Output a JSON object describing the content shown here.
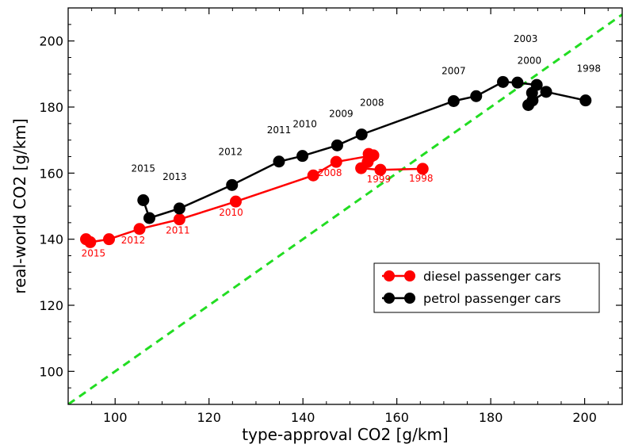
{
  "chart_data": {
    "type": "scatter",
    "xlabel": "type-approval CO2 [g/km]",
    "ylabel": "real-world CO2 [g/km]",
    "xlim": [
      90,
      208
    ],
    "ylim": [
      90,
      210
    ],
    "x_ticks": [
      100,
      120,
      140,
      160,
      180,
      200
    ],
    "y_ticks": [
      100,
      120,
      140,
      160,
      180,
      200
    ],
    "grid": false,
    "legend_position": "bottom-right",
    "reference_line": {
      "style": "dashed",
      "color": "#22dd22",
      "x": [
        90,
        208
      ],
      "y": [
        90,
        208
      ]
    },
    "series": [
      {
        "name": "diesel passenger cars",
        "color": "#ff0000",
        "points": [
          {
            "x": 165.5,
            "y": 161.3
          },
          {
            "x": 156.5,
            "y": 161.0
          },
          {
            "x": 152.4,
            "y": 161.5
          },
          {
            "x": 153.8,
            "y": 163.4
          },
          {
            "x": 154.5,
            "y": 165.0
          },
          {
            "x": 154.0,
            "y": 165.8
          },
          {
            "x": 155.0,
            "y": 165.4
          },
          {
            "x": 147.1,
            "y": 163.4
          },
          {
            "x": 142.2,
            "y": 159.3
          },
          {
            "x": 125.7,
            "y": 151.4
          },
          {
            "x": 113.7,
            "y": 146.0
          },
          {
            "x": 105.2,
            "y": 143.1
          },
          {
            "x": 98.7,
            "y": 140.0
          },
          {
            "x": 94.7,
            "y": 139.1
          },
          {
            "x": 93.8,
            "y": 140.0
          }
        ],
        "labels": [
          {
            "text": "1998",
            "x": 165.5,
            "y": 161.3,
            "dx": -2,
            "dy": 16
          },
          {
            "text": "1999",
            "x": 156.5,
            "y": 161.0,
            "dx": -2,
            "dy": 16
          },
          {
            "text": "2008",
            "x": 147.1,
            "y": 163.4,
            "dx": -8,
            "dy": 18
          },
          {
            "text": "2010",
            "x": 125.7,
            "y": 151.4,
            "dx": -6,
            "dy": 18
          },
          {
            "text": "2011",
            "x": 113.7,
            "y": 146.0,
            "dx": -2,
            "dy": 18
          },
          {
            "text": "2012",
            "x": 105.2,
            "y": 143.1,
            "dx": -8,
            "dy": 18
          },
          {
            "text": "2015",
            "x": 94.7,
            "y": 139.1,
            "dx": 4,
            "dy": 18
          }
        ]
      },
      {
        "name": "petrol passenger cars",
        "color": "#000000",
        "points": [
          {
            "x": 200.2,
            "y": 182.0
          },
          {
            "x": 191.8,
            "y": 184.6
          },
          {
            "x": 188.9,
            "y": 182.0
          },
          {
            "x": 188.0,
            "y": 180.6
          },
          {
            "x": 188.8,
            "y": 184.3
          },
          {
            "x": 189.8,
            "y": 186.7
          },
          {
            "x": 185.7,
            "y": 187.4
          },
          {
            "x": 182.6,
            "y": 187.6
          },
          {
            "x": 176.9,
            "y": 183.3
          },
          {
            "x": 172.1,
            "y": 181.8
          },
          {
            "x": 152.5,
            "y": 171.7
          },
          {
            "x": 147.3,
            "y": 168.4
          },
          {
            "x": 139.9,
            "y": 165.2
          },
          {
            "x": 134.9,
            "y": 163.5
          },
          {
            "x": 124.9,
            "y": 156.4
          },
          {
            "x": 113.7,
            "y": 149.3
          },
          {
            "x": 107.3,
            "y": 146.4
          },
          {
            "x": 106.0,
            "y": 151.8
          }
        ],
        "labels": [
          {
            "text": "1998",
            "x": 200.2,
            "y": 182.0,
            "dx": 4,
            "dy": -36
          },
          {
            "text": "2000",
            "x": 188.9,
            "y": 182.0,
            "dx": -4,
            "dy": -46
          },
          {
            "text": "2003",
            "x": 189.8,
            "y": 186.7,
            "dx": -14,
            "dy": -54
          },
          {
            "text": "2007",
            "x": 172.1,
            "y": 181.8,
            "dx": 0,
            "dy": -34
          },
          {
            "text": "2008",
            "x": 152.5,
            "y": 171.7,
            "dx": 13,
            "dy": -36
          },
          {
            "text": "2009",
            "x": 147.3,
            "y": 168.4,
            "dx": 5,
            "dy": -36
          },
          {
            "text": "2010",
            "x": 139.9,
            "y": 165.2,
            "dx": 3,
            "dy": -36
          },
          {
            "text": "2011",
            "x": 134.9,
            "y": 163.5,
            "dx": 0,
            "dy": -36
          },
          {
            "text": "2012",
            "x": 124.9,
            "y": 156.4,
            "dx": -2,
            "dy": -38
          },
          {
            "text": "2013",
            "x": 113.7,
            "y": 149.3,
            "dx": -6,
            "dy": -36
          },
          {
            "text": "2015",
            "x": 106.0,
            "y": 151.8,
            "dx": 0,
            "dy": -36
          }
        ]
      }
    ]
  }
}
